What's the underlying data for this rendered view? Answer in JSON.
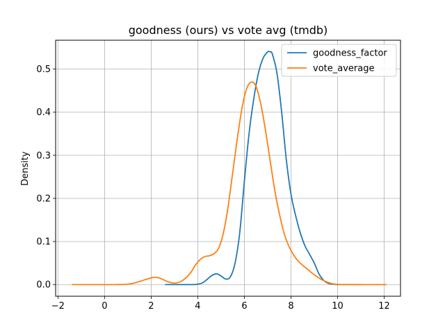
{
  "chart_data": {
    "type": "line",
    "title": "goodness (ours) vs vote avg (tmdb)",
    "xlabel": "",
    "ylabel": "Density",
    "xlim": [
      -2.1,
      12.7
    ],
    "ylim": [
      -0.027,
      0.567
    ],
    "xticks": [
      -2,
      0,
      2,
      4,
      6,
      8,
      10,
      12
    ],
    "xtick_labels": [
      "−2",
      "0",
      "2",
      "4",
      "6",
      "8",
      "10",
      "12"
    ],
    "yticks": [
      0.0,
      0.1,
      0.2,
      0.3,
      0.4,
      0.5
    ],
    "ytick_labels": [
      "0.0",
      "0.1",
      "0.2",
      "0.3",
      "0.4",
      "0.5"
    ],
    "grid": true,
    "legend_position": "top-right",
    "series": [
      {
        "name": "goodness_factor",
        "color": "#1f77b4",
        "x": [
          2.6,
          3.0,
          3.5,
          3.8,
          4.0,
          4.2,
          4.4,
          4.6,
          4.8,
          5.0,
          5.2,
          5.4,
          5.6,
          5.8,
          6.0,
          6.2,
          6.4,
          6.6,
          6.8,
          7.0,
          7.1,
          7.2,
          7.4,
          7.6,
          7.8,
          8.0,
          8.2,
          8.4,
          8.6,
          8.8,
          9.0,
          9.2,
          9.4,
          9.6,
          9.8,
          10.0,
          10.5,
          11.0
        ],
        "y": [
          0.0,
          0.0,
          0.0,
          0.0,
          0.001,
          0.004,
          0.012,
          0.021,
          0.025,
          0.02,
          0.013,
          0.018,
          0.05,
          0.12,
          0.24,
          0.35,
          0.43,
          0.49,
          0.525,
          0.54,
          0.54,
          0.535,
          0.49,
          0.4,
          0.29,
          0.21,
          0.16,
          0.12,
          0.09,
          0.07,
          0.05,
          0.025,
          0.01,
          0.003,
          0.001,
          0.0,
          0.0,
          0.0
        ]
      },
      {
        "name": "vote_average",
        "color": "#ff7f0e",
        "x": [
          -1.4,
          -1.0,
          -0.5,
          0.0,
          0.5,
          1.0,
          1.3,
          1.6,
          1.9,
          2.1,
          2.3,
          2.5,
          2.7,
          2.9,
          3.1,
          3.3,
          3.5,
          3.7,
          3.9,
          4.1,
          4.3,
          4.5,
          4.7,
          4.9,
          5.1,
          5.3,
          5.5,
          5.7,
          5.9,
          6.1,
          6.3,
          6.5,
          6.7,
          6.9,
          7.1,
          7.3,
          7.5,
          7.7,
          7.9,
          8.1,
          8.3,
          8.5,
          8.7,
          8.9,
          9.1,
          9.3,
          9.5,
          9.7,
          9.9,
          10.2,
          10.5,
          11.0,
          11.5,
          12.1
        ],
        "y": [
          0.0,
          0.0,
          0.0,
          0.0,
          0.0,
          0.001,
          0.004,
          0.009,
          0.014,
          0.017,
          0.016,
          0.012,
          0.007,
          0.004,
          0.004,
          0.008,
          0.016,
          0.028,
          0.045,
          0.058,
          0.065,
          0.067,
          0.072,
          0.085,
          0.12,
          0.18,
          0.26,
          0.34,
          0.41,
          0.455,
          0.47,
          0.46,
          0.42,
          0.36,
          0.29,
          0.22,
          0.165,
          0.12,
          0.09,
          0.07,
          0.055,
          0.045,
          0.036,
          0.027,
          0.019,
          0.012,
          0.007,
          0.003,
          0.001,
          0.0,
          0.0,
          0.0,
          0.0,
          0.0
        ]
      }
    ]
  }
}
